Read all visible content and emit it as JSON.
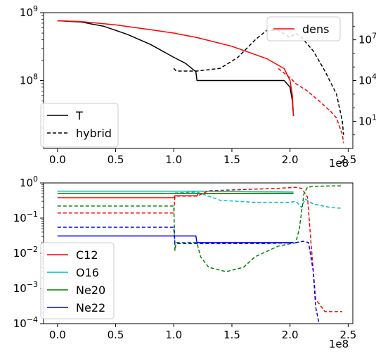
{
  "chart_data": [
    {
      "type": "line",
      "x_scale": "linear",
      "y_scale": "log",
      "xlim": [
        -0.12,
        2.54
      ],
      "ylim": [
        10000000.0,
        1000000000.0
      ],
      "y2_scale": "log",
      "y2lim": [
        0.1,
        1000000000.0
      ],
      "x_offset_label": "1e8",
      "x_ticks": [
        {
          "value": 0.0,
          "label": "0.0"
        },
        {
          "value": 0.5,
          "label": "0.5"
        },
        {
          "value": 1.0,
          "label": "1.0"
        },
        {
          "value": 1.5,
          "label": "1.5"
        },
        {
          "value": 2.0,
          "label": "2.0"
        },
        {
          "value": 2.5,
          "label": "2.5"
        }
      ],
      "y_ticks": [
        {
          "value": 1000000000.0,
          "label": "10",
          "exp": "9"
        },
        {
          "value": 100000000.0,
          "label": "10",
          "exp": "8"
        }
      ],
      "y2_ticks": [
        {
          "value": 10000000.0,
          "label": "10",
          "exp": "7"
        },
        {
          "value": 10000.0,
          "label": "10",
          "exp": "4"
        },
        {
          "value": 10,
          "label": "10",
          "exp": "1"
        }
      ],
      "series": [
        {
          "name": "T",
          "axis": "left",
          "color": "#000000",
          "dash": "solid",
          "x": [
            0.0,
            0.2,
            0.4,
            0.6,
            0.8,
            1.0,
            1.1,
            1.19,
            1.2,
            1.5,
            1.8,
            1.95,
            2.0,
            2.02,
            2.03
          ],
          "y": [
            760000000.0,
            730000000.0,
            630000000.0,
            480000000.0,
            340000000.0,
            220000000.0,
            180000000.0,
            135000000.0,
            100000000.0,
            100000000.0,
            100000000.0,
            100000000.0,
            80000000.0,
            50000000.0,
            30000000.0
          ]
        },
        {
          "name": "hybrid",
          "axis": "right",
          "color": "#000000",
          "dash": "dashed",
          "x": [
            1.0,
            1.02,
            1.2,
            1.4,
            1.55,
            1.7,
            1.8,
            1.9,
            2.0,
            2.05,
            2.1,
            2.2,
            2.3,
            2.4,
            2.45,
            2.46
          ],
          "y": [
            80000.0,
            50000.0,
            50000.0,
            80000.0,
            500000.0,
            10000000.0,
            50000000.0,
            50000000.0,
            15000000.0,
            30000000.0,
            15000000.0,
            1500000.0,
            50000.0,
            1000.0,
            10,
            1
          ]
        },
        {
          "name": "dens",
          "axis": "left",
          "color": "#ff0000",
          "dash": "solid",
          "x": [
            0.0,
            0.2,
            0.5,
            0.8,
            1.0,
            1.2,
            1.5,
            1.8,
            1.95,
            2.0,
            2.02,
            2.03
          ],
          "y": [
            760000000.0,
            740000000.0,
            660000000.0,
            560000000.0,
            500000000.0,
            430000000.0,
            320000000.0,
            210000000.0,
            150000000.0,
            100000000.0,
            60000000.0,
            30000000.0
          ]
        },
        {
          "name": "",
          "axis": "left",
          "color": "#ff0000",
          "dash": "dashed",
          "x": [
            1.9,
            2.0,
            2.05,
            2.15,
            2.25,
            2.35,
            2.4,
            2.45,
            2.46
          ],
          "y": [
            150000000.0,
            110000000.0,
            90000000.0,
            70000000.0,
            50000000.0,
            35000000.0,
            28000000.0,
            16000000.0,
            12000000.0
          ]
        }
      ],
      "legends": [
        {
          "placement": "lower-left",
          "entries": [
            {
              "label": "T",
              "color": "#000000",
              "dash": "solid"
            },
            {
              "label": "hybrid",
              "color": "#000000",
              "dash": "dashed"
            }
          ]
        },
        {
          "placement": "upper-right",
          "entries": [
            {
              "label": "dens",
              "color": "#ff0000",
              "dash": "solid"
            }
          ]
        }
      ]
    },
    {
      "type": "line",
      "x_scale": "linear",
      "y_scale": "log",
      "xlim": [
        -0.12,
        2.54
      ],
      "ylim": [
        0.0001,
        1
      ],
      "x_offset_label": "1e8",
      "x_ticks": [
        {
          "value": 0.0,
          "label": "0.0"
        },
        {
          "value": 0.5,
          "label": "0.5"
        },
        {
          "value": 1.0,
          "label": "1.0"
        },
        {
          "value": 1.5,
          "label": "1.5"
        },
        {
          "value": 2.0,
          "label": "2.0"
        },
        {
          "value": 2.5,
          "label": "2.5"
        }
      ],
      "y_ticks": [
        {
          "value": 1,
          "label": "10",
          "exp": "0"
        },
        {
          "value": 0.1,
          "label": "10",
          "exp": "−1"
        },
        {
          "value": 0.01,
          "label": "10",
          "exp": "−2"
        },
        {
          "value": 0.001,
          "label": "10",
          "exp": "−3"
        },
        {
          "value": 0.0001,
          "label": "10",
          "exp": "−4"
        }
      ],
      "series": [
        {
          "name": "C12",
          "color": "#ff0000",
          "dash": "solid",
          "x": [
            0.0,
            1.0,
            1.01,
            1.2,
            1.21,
            2.03
          ],
          "y": [
            0.38,
            0.38,
            0.43,
            0.43,
            0.5,
            0.5
          ]
        },
        {
          "name": "O16",
          "color": "#00bfbf",
          "dash": "solid",
          "x": [
            0.0,
            1.0,
            1.2,
            2.03
          ],
          "y": [
            0.58,
            0.58,
            0.58,
            0.55
          ]
        },
        {
          "name": "Ne20",
          "color": "#008000",
          "dash": "solid",
          "x": [
            0.0,
            1.0,
            1.2,
            2.03
          ],
          "y": [
            0.5,
            0.5,
            0.5,
            0.5
          ]
        },
        {
          "name": "Ne22",
          "color": "#0000ff",
          "dash": "solid",
          "x": [
            0.0,
            1.19,
            1.2,
            2.03
          ],
          "y": [
            0.031,
            0.031,
            0.02,
            0.02
          ]
        },
        {
          "name": "",
          "color": "#ff0000",
          "dash": "dashed",
          "x": [
            0.0,
            1.0,
            1.01,
            1.2,
            1.3,
            1.6,
            1.9,
            2.05,
            2.1,
            2.15,
            2.18,
            2.22,
            2.3,
            2.45
          ],
          "y": [
            0.14,
            0.14,
            0.42,
            0.42,
            0.6,
            0.65,
            0.7,
            0.75,
            0.7,
            0.4,
            0.02,
            0.0005,
            0.00022,
            0.00022
          ]
        },
        {
          "name": "",
          "color": "#00bfbf",
          "dash": "dashed",
          "x": [
            0.0,
            1.0,
            1.01,
            1.2,
            1.4,
            1.7,
            2.0,
            2.05,
            2.1,
            2.13,
            2.2,
            2.35,
            2.45
          ],
          "y": [
            0.58,
            0.58,
            0.52,
            0.55,
            0.32,
            0.28,
            0.28,
            0.3,
            0.2,
            0.35,
            0.25,
            0.2,
            0.19
          ]
        },
        {
          "name": "",
          "color": "#008000",
          "dash": "dashed",
          "x": [
            0.0,
            1.0,
            1.01,
            1.02,
            1.2,
            1.23,
            1.3,
            1.45,
            1.6,
            1.7,
            1.9,
            2.05,
            2.08,
            2.12,
            2.15,
            2.2,
            2.35,
            2.45
          ],
          "y": [
            0.22,
            0.22,
            0.012,
            0.02,
            0.02,
            0.008,
            0.004,
            0.003,
            0.004,
            0.008,
            0.016,
            0.02,
            0.05,
            0.5,
            0.75,
            0.8,
            0.82,
            0.82
          ]
        },
        {
          "name": "",
          "color": "#0000ff",
          "dash": "dashed",
          "x": [
            0.0,
            1.0,
            1.01,
            1.2,
            1.5,
            1.8,
            2.05,
            2.12,
            2.16,
            2.2,
            2.22,
            2.25
          ],
          "y": [
            0.055,
            0.055,
            0.019,
            0.019,
            0.019,
            0.019,
            0.02,
            0.022,
            0.02,
            0.003,
            0.0003,
            0.0001
          ]
        }
      ],
      "legends": [
        {
          "placement": "lower-left",
          "entries": [
            {
              "label": "C12",
              "color": "#ff0000",
              "dash": "solid"
            },
            {
              "label": "O16",
              "color": "#00bfbf",
              "dash": "solid"
            },
            {
              "label": "Ne20",
              "color": "#008000",
              "dash": "solid"
            },
            {
              "label": "Ne22",
              "color": "#0000ff",
              "dash": "solid"
            }
          ]
        }
      ]
    }
  ]
}
